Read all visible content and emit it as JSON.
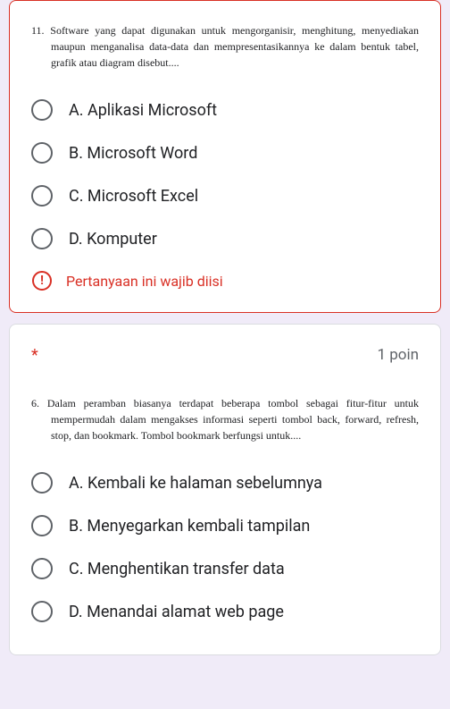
{
  "question1": {
    "number": "11.",
    "text": "Software yang dapat digunakan untuk mengorganisir, menghitung, menyediakan maupun menganalisa data-data dan mempresentasikannya ke dalam bentuk tabel, grafik atau diagram disebut....",
    "options": [
      "A. Aplikasi Microsoft",
      "B. Microsoft Word",
      "C. Microsoft Excel",
      "D. Komputer"
    ],
    "error_message": "Pertanyaan ini wajib diisi"
  },
  "question2": {
    "required_marker": "*",
    "points": "1 poin",
    "number": "6.",
    "text": "Dalam peramban biasanya terdapat beberapa tombol sebagai fitur-fitur untuk mempermudah dalam mengakses informasi seperti tombol back, forward, refresh, stop, dan bookmark. Tombol bookmark berfungsi untuk....",
    "options": [
      "A. Kembali ke halaman sebelumnya",
      "B. Menyegarkan kembali tampilan",
      "C. Menghentikan transfer data",
      "D. Menandai alamat web page"
    ]
  },
  "colors": {
    "error": "#d93025",
    "text": "#202124",
    "muted": "#5f6368",
    "border": "#dadce0",
    "background": "#f0ebf8"
  }
}
